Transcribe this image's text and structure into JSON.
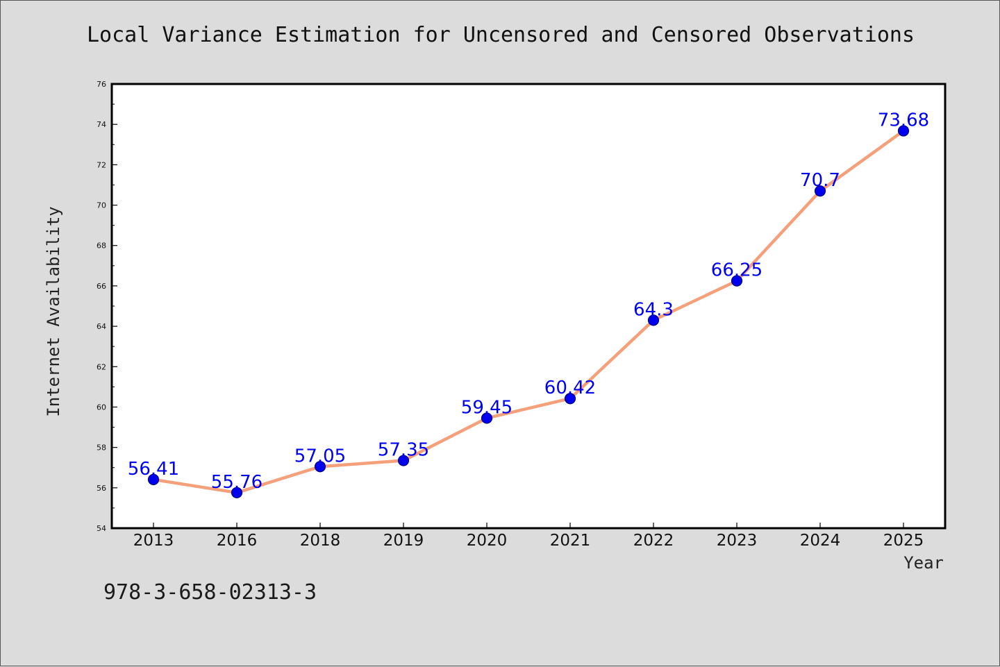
{
  "figure": {
    "title": "Local Variance Estimation for Uncensored and Censored Observations",
    "footer_code": "978-3-658-02313-3",
    "background_color": "#dcdcdc"
  },
  "chart_data": {
    "type": "line",
    "title": "Local Variance Estimation for Uncensored and Censored Observations",
    "xlabel": "Year",
    "ylabel": "Internet Availability",
    "categories": [
      "2013",
      "2016",
      "2018",
      "2019",
      "2020",
      "2021",
      "2022",
      "2023",
      "2024",
      "2025"
    ],
    "series": [
      {
        "values": [
          56.41,
          55.76,
          57.05,
          57.35,
          59.45,
          60.42,
          64.3,
          66.25,
          70.7,
          73.68
        ],
        "labels": [
          "56.41",
          "55.76",
          "57.05",
          "57.35",
          "59.45",
          "60.42",
          "64.3",
          "66.25",
          "70.7",
          "73.68"
        ],
        "line_color": "#f4a07a",
        "marker_color": "#0000ee",
        "label_color": "#0000ee"
      }
    ],
    "ylim": [
      54,
      76
    ],
    "y_ticks": [
      "54",
      "56",
      "58",
      "60",
      "62",
      "64",
      "66",
      "68",
      "70",
      "72",
      "74",
      "76"
    ],
    "grid": false,
    "legend": "none"
  }
}
